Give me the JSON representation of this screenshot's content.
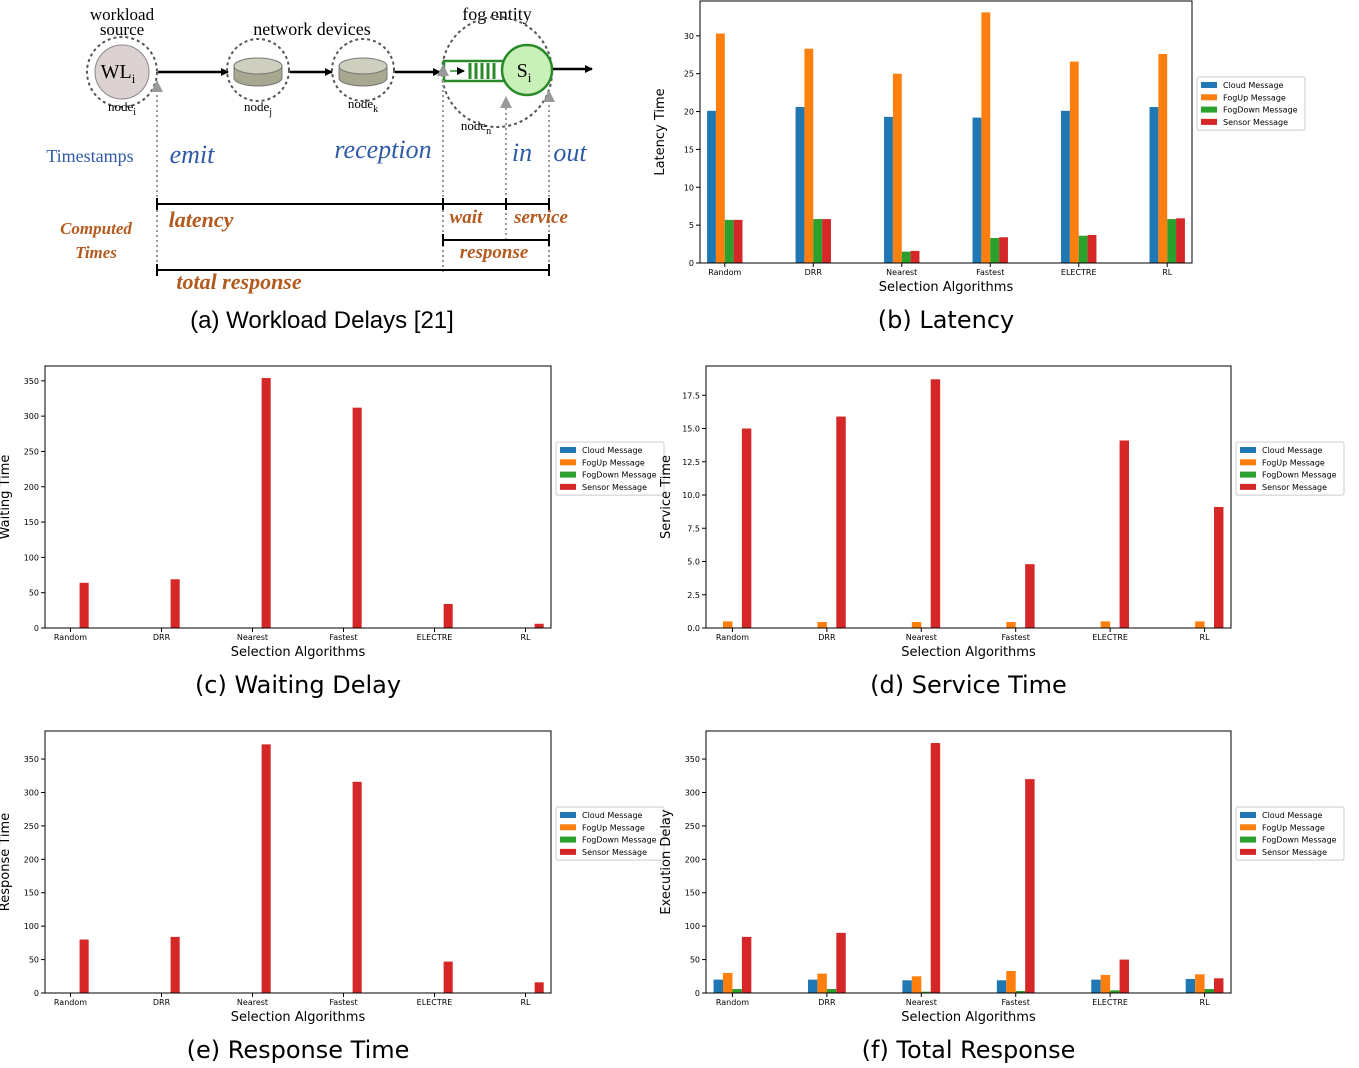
{
  "diagram": {
    "workload_source": [
      "workload",
      "source"
    ],
    "wl": "WL",
    "wl_sub": "i",
    "network_devices": "network devices",
    "fog_entity": "fog entity",
    "s": "S",
    "s_sub": "i",
    "nodes": [
      {
        "label": "node",
        "sub": "i"
      },
      {
        "label": "node",
        "sub": "j"
      },
      {
        "label": "node",
        "sub": "k"
      },
      {
        "label": "node",
        "sub": "n"
      }
    ],
    "timestamps": "Timestamps",
    "emit": "emit",
    "reception": "reception",
    "in": "in",
    "out": "out",
    "computed_times": [
      "Computed",
      "Times"
    ],
    "latency": "latency",
    "wait": "wait",
    "service": "service",
    "response": "response",
    "total_response": "total response",
    "caption": "(a) Workload Delays [21]"
  },
  "chart_data": [
    {
      "type": "bar",
      "caption": "(b) Latency",
      "y_label": "Latency Time",
      "x_label": "Selection Algorithms",
      "legend": "right",
      "categories": [
        "Random",
        "DRR",
        "Nearest",
        "Fastest",
        "ELECTRE",
        "RL"
      ],
      "series": [
        {
          "name": "Cloud Message",
          "color": "#1f77b4",
          "values": [
            20.1,
            20.6,
            19.3,
            19.2,
            20.1,
            20.6
          ]
        },
        {
          "name": "FogUp Message",
          "color": "#ff7f0e",
          "values": [
            30.3,
            28.3,
            25.0,
            33.1,
            26.6,
            27.6
          ]
        },
        {
          "name": "FogDown Message",
          "color": "#2ca02c",
          "values": [
            5.7,
            5.8,
            1.5,
            3.3,
            3.6,
            5.8
          ]
        },
        {
          "name": "Sensor Message",
          "color": "#d62728",
          "values": [
            5.7,
            5.8,
            1.6,
            3.4,
            3.7,
            5.9
          ]
        }
      ],
      "ylim": [
        0,
        34.6
      ],
      "yticks": [
        0,
        5,
        10,
        15,
        20,
        25,
        30
      ]
    },
    {
      "type": "bar",
      "caption": "(c) Waiting Delay",
      "y_label": "Waiting Time",
      "x_label": "Selection Algorithms",
      "legend": "right",
      "categories": [
        "Random",
        "DRR",
        "Nearest",
        "Fastest",
        "ELECTRE",
        "RL"
      ],
      "series": [
        {
          "name": "Cloud Message",
          "color": "#1f77b4",
          "values": [
            0.5,
            0.5,
            0.5,
            0.5,
            0.5,
            0.5
          ]
        },
        {
          "name": "FogUp Message",
          "color": "#ff7f0e",
          "values": [
            0.3,
            0.3,
            0.3,
            0.3,
            0.3,
            0.3
          ]
        },
        {
          "name": "FogDown Message",
          "color": "#2ca02c",
          "values": [
            0.2,
            0.2,
            0.2,
            0.2,
            0.2,
            0.2
          ]
        },
        {
          "name": "Sensor Message",
          "color": "#d62728",
          "values": [
            64,
            69,
            354,
            312,
            34,
            6
          ]
        }
      ],
      "ylim": [
        0,
        371
      ],
      "yticks": [
        0,
        50,
        100,
        150,
        200,
        250,
        300,
        350
      ]
    },
    {
      "type": "bar",
      "caption": "(d) Service Time",
      "y_label": "Service Time",
      "x_label": "Selection Algorithms",
      "legend": "right",
      "categories": [
        "Random",
        "DRR",
        "Nearest",
        "Fastest",
        "ELECTRE",
        "RL"
      ],
      "series": [
        {
          "name": "Cloud Message",
          "color": "#1f77b4",
          "values": [
            0.02,
            0.02,
            0.02,
            0.02,
            0.02,
            0.02
          ]
        },
        {
          "name": "FogUp Message",
          "color": "#ff7f0e",
          "values": [
            0.5,
            0.45,
            0.45,
            0.45,
            0.5,
            0.5
          ]
        },
        {
          "name": "FogDown Message",
          "color": "#2ca02c",
          "values": [
            0.02,
            0.02,
            0.02,
            0.02,
            0.02,
            0.02
          ]
        },
        {
          "name": "Sensor Message",
          "color": "#d62728",
          "values": [
            15.0,
            15.9,
            18.7,
            4.8,
            14.1,
            9.1
          ]
        }
      ],
      "ylim": [
        0,
        19.7
      ],
      "yticks": [
        {
          "value": 0,
          "label": "0.0"
        },
        2.5,
        {
          "value": 5,
          "label": "5.0"
        },
        7.5,
        {
          "value": 10,
          "label": "10.0"
        },
        12.5,
        {
          "value": 15,
          "label": "15.0"
        },
        17.5
      ]
    },
    {
      "type": "bar",
      "caption": "(e) Response Time",
      "y_label": "Response Time",
      "x_label": "Selection Algorithms",
      "legend": "right",
      "categories": [
        "Random",
        "DRR",
        "Nearest",
        "Fastest",
        "ELECTRE",
        "RL"
      ],
      "series": [
        {
          "name": "Cloud Message",
          "color": "#1f77b4",
          "values": [
            0.5,
            0.5,
            0.5,
            0.5,
            0.5,
            0.5
          ]
        },
        {
          "name": "FogUp Message",
          "color": "#ff7f0e",
          "values": [
            0.8,
            0.8,
            0.8,
            0.8,
            0.8,
            0.8
          ]
        },
        {
          "name": "FogDown Message",
          "color": "#2ca02c",
          "values": [
            0.2,
            0.2,
            0.2,
            0.2,
            0.2,
            0.2
          ]
        },
        {
          "name": "Sensor Message",
          "color": "#d62728",
          "values": [
            80,
            84,
            372,
            316,
            47,
            16
          ]
        }
      ],
      "ylim": [
        0,
        392
      ],
      "yticks": [
        0,
        50,
        100,
        150,
        200,
        250,
        300,
        350
      ]
    },
    {
      "type": "bar",
      "caption": "(f) Total Response",
      "y_label": "Execution Delay",
      "x_label": "Selection Algorithms",
      "legend": "right",
      "categories": [
        "Random",
        "DRR",
        "Nearest",
        "Fastest",
        "ELECTRE",
        "RL"
      ],
      "series": [
        {
          "name": "Cloud Message",
          "color": "#1f77b4",
          "values": [
            20,
            20,
            19,
            19,
            20,
            21
          ]
        },
        {
          "name": "FogUp Message",
          "color": "#ff7f0e",
          "values": [
            30,
            29,
            25,
            33,
            27,
            28
          ]
        },
        {
          "name": "FogDown Message",
          "color": "#2ca02c",
          "values": [
            6,
            6,
            2,
            3,
            4,
            6
          ]
        },
        {
          "name": "Sensor Message",
          "color": "#d62728",
          "values": [
            84,
            90,
            374,
            320,
            50,
            22
          ]
        }
      ],
      "ylim": [
        0,
        392
      ],
      "yticks": [
        0,
        50,
        100,
        150,
        200,
        250,
        300,
        350
      ]
    }
  ]
}
